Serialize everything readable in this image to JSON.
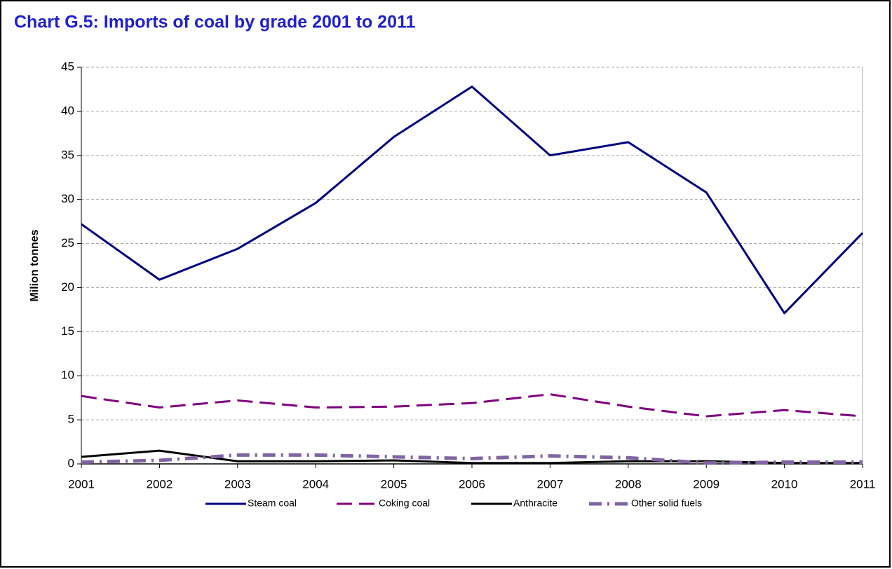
{
  "chart_data": {
    "type": "line",
    "title": "Chart G.5:  Imports of coal by grade 2001 to 2011",
    "y_label": "Milion tonnes",
    "x": [
      2001,
      2002,
      2003,
      2004,
      2005,
      2006,
      2007,
      2008,
      2009,
      2010,
      2011
    ],
    "xlim": [
      2001,
      2011
    ],
    "xticks": [
      2001,
      2002,
      2003,
      2004,
      2005,
      2006,
      2007,
      2008,
      2009,
      2010,
      2011
    ],
    "ylim": [
      0,
      45
    ],
    "yticks": [
      0,
      5,
      10,
      15,
      20,
      25,
      30,
      35,
      40,
      45
    ],
    "grid": true,
    "legend": "bottom",
    "series": [
      {
        "name": "Steam coal",
        "color": "#000080",
        "dash": "solid",
        "values": [
          27.2,
          20.9,
          24.4,
          29.6,
          37.1,
          42.8,
          35.0,
          36.5,
          30.8,
          17.1,
          26.2
        ]
      },
      {
        "name": "Coking coal",
        "color": "#800080",
        "dash": "dash",
        "values": [
          7.7,
          6.4,
          7.2,
          6.4,
          6.5,
          6.9,
          7.9,
          6.5,
          5.4,
          6.1,
          5.4
        ]
      },
      {
        "name": "Anthracite",
        "color": "#000000",
        "dash": "solid",
        "values": [
          0.8,
          1.5,
          0.3,
          0.3,
          0.4,
          0.1,
          0.1,
          0.3,
          0.3,
          0.1,
          0.1
        ]
      },
      {
        "name": "Other solid fuels",
        "color": "#8064a2",
        "dash": "dashdot",
        "values": [
          0.2,
          0.4,
          1.0,
          1.0,
          0.8,
          0.6,
          0.9,
          0.7,
          0.1,
          0.2,
          0.2
        ]
      }
    ]
  }
}
